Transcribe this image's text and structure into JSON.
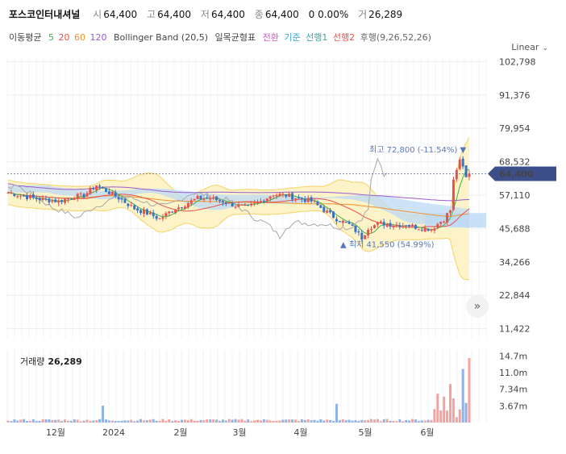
{
  "header": {
    "name": "포스코인터내셔널",
    "open_label": "시",
    "open": "64,400",
    "high_label": "고",
    "high": "64,400",
    "low_label": "저",
    "low": "64,400",
    "close_label": "종",
    "close": "64,400",
    "change": "0 0.00%",
    "volume_label": "거",
    "volume": "26,289"
  },
  "indicators": {
    "ma_label": "이동평균",
    "ma5": "5",
    "ma20": "20",
    "ma60": "60",
    "ma120": "120",
    "bollinger": "Bollinger Band (20,5)",
    "ichimoku": "일목균형표",
    "conversion": "전환",
    "base": "기준",
    "span1": "선행1",
    "span2": "선행2",
    "lagging": "후행(9,26,52,26)"
  },
  "scale_mode": "Linear",
  "colors": {
    "up": "#e8524a",
    "down": "#3a72c4",
    "ma5": "#3cb44b",
    "ma20": "#e8524a",
    "ma60": "#f0932b",
    "ma120": "#9b59d0",
    "bollinger_fill": "#fdf3c8",
    "bollinger_line": "#f5d266",
    "cloud_blue": "#bcd9f5",
    "cloud_red": "#f6c7c7",
    "current_price_bg": "#3c4f8a"
  },
  "chart_data": {
    "type": "candlestick",
    "title": "포스코인터내셔널",
    "y_ticks": [
      102798,
      91376,
      79954,
      68532,
      57110,
      45688,
      34266,
      22844,
      11422
    ],
    "y_tick_labels": [
      "102,798",
      "91,376",
      "79,954",
      "68,532",
      "57,110",
      "45,688",
      "34,266",
      "22,844",
      "11,422"
    ],
    "ylim": [
      8000,
      104000
    ],
    "x_labels": [
      "12월",
      "2024",
      "2월",
      "3월",
      "4월",
      "5월",
      "6월"
    ],
    "current_price": 64400,
    "current_price_label": "64,400",
    "max_annotation": "최고 72,800 (-11.54%)",
    "max_price": 72800,
    "min_annotation": "최저 41,550 (54.99%)",
    "min_price": 41550,
    "close_path": [
      [
        0,
        58000
      ],
      [
        4,
        57000
      ],
      [
        8,
        56000
      ],
      [
        12,
        55500
      ],
      [
        16,
        55000
      ],
      [
        20,
        56500
      ],
      [
        24,
        57000
      ],
      [
        28,
        60500
      ],
      [
        32,
        58000
      ],
      [
        36,
        55500
      ],
      [
        40,
        52500
      ],
      [
        44,
        51000
      ],
      [
        48,
        49000
      ],
      [
        52,
        52000
      ],
      [
        56,
        54000
      ],
      [
        60,
        56000
      ],
      [
        64,
        56000
      ],
      [
        68,
        55000
      ],
      [
        72,
        53500
      ],
      [
        76,
        53000
      ],
      [
        80,
        55000
      ],
      [
        84,
        57500
      ],
      [
        88,
        57000
      ],
      [
        92,
        56000
      ],
      [
        96,
        55000
      ],
      [
        100,
        52000
      ],
      [
        104,
        49000
      ],
      [
        108,
        47000
      ],
      [
        110,
        45000
      ],
      [
        112,
        42500
      ],
      [
        114,
        46000
      ],
      [
        118,
        47500
      ],
      [
        122,
        47000
      ],
      [
        126,
        47000
      ],
      [
        130,
        46000
      ],
      [
        134,
        45500
      ],
      [
        138,
        49000
      ],
      [
        140,
        52000
      ],
      [
        141,
        62000
      ],
      [
        142,
        66000
      ],
      [
        143,
        68500
      ],
      [
        144,
        66500
      ],
      [
        145,
        63000
      ],
      [
        146,
        64400
      ]
    ],
    "volume_ticks": [
      "14.7m",
      "11.0m",
      "7.34m",
      "3.67m"
    ],
    "volume_title": "거래량",
    "volume_value": "26,289",
    "volume_ylim_m": [
      0,
      16
    ],
    "volume_spikes_m": [
      [
        0.9,
        1.6
      ],
      [
        0.97,
        5.2
      ],
      [
        0.99,
        14.2
      ]
    ]
  }
}
